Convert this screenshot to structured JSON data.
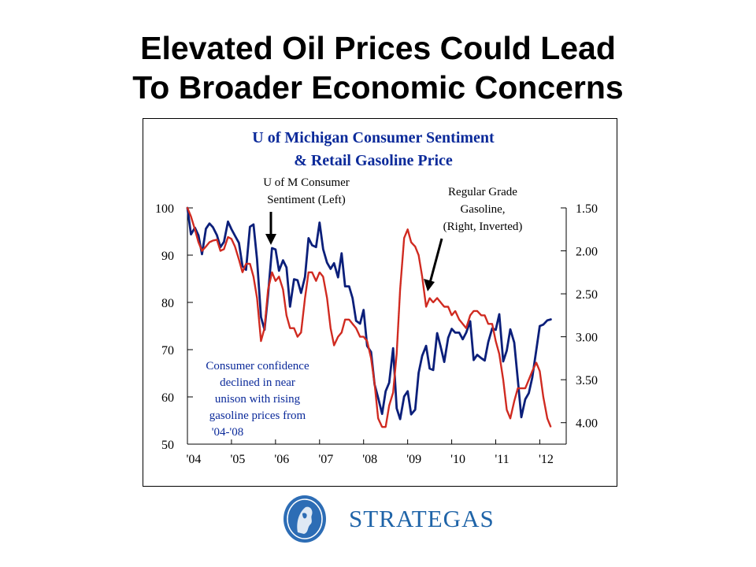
{
  "slide": {
    "title_line1": "Elevated Oil Prices Could Lead",
    "title_line2": "To Broader Economic Concerns"
  },
  "chart_data": {
    "type": "line",
    "title": "U of Michigan Consumer Sentiment & Retail Gasoline Price",
    "title_line1": "U of Michigan Consumer Sentiment",
    "title_line2": "& Retail Gasoline Price",
    "x_tick_labels": [
      "'04",
      "'05",
      "'06",
      "'07",
      "'08",
      "'09",
      "'10",
      "'11",
      "'12"
    ],
    "x_range": [
      2004.0,
      2012.6
    ],
    "y_left": {
      "range": [
        50,
        100
      ],
      "ticks": [
        100,
        90,
        80,
        70,
        60,
        50
      ]
    },
    "y_right": {
      "range": [
        1.5,
        4.25
      ],
      "inverted": true,
      "ticks": [
        "1.50",
        "2.00",
        "2.50",
        "3.00",
        "3.50",
        "4.00"
      ]
    },
    "grid": false,
    "annotations": {
      "sentiment_label_line1": "U of M Consumer",
      "sentiment_label_line2": "Sentiment (Left)",
      "gas_label_line1": "Regular Grade",
      "gas_label_line2": "Gasoline,",
      "gas_label_line3": "(Right, Inverted)",
      "note_lines": [
        "Consumer confidence",
        "declined in near",
        "unison with rising",
        "gasoline prices from",
        "'04-'08"
      ]
    },
    "series": [
      {
        "name": "U of M Consumer Sentiment (Left)",
        "axis": "left",
        "color": "#0b1f7a",
        "x": [
          2004.0,
          2004.08,
          2004.17,
          2004.25,
          2004.33,
          2004.42,
          2004.5,
          2004.58,
          2004.67,
          2004.75,
          2004.83,
          2004.92,
          2005.0,
          2005.08,
          2005.17,
          2005.25,
          2005.33,
          2005.42,
          2005.5,
          2005.58,
          2005.67,
          2005.75,
          2005.83,
          2005.92,
          2006.0,
          2006.08,
          2006.17,
          2006.25,
          2006.33,
          2006.42,
          2006.5,
          2006.58,
          2006.67,
          2006.75,
          2006.83,
          2006.92,
          2007.0,
          2007.08,
          2007.17,
          2007.25,
          2007.33,
          2007.42,
          2007.5,
          2007.58,
          2007.67,
          2007.75,
          2007.83,
          2007.92,
          2008.0,
          2008.08,
          2008.17,
          2008.25,
          2008.33,
          2008.42,
          2008.5,
          2008.58,
          2008.67,
          2008.75,
          2008.83,
          2008.92,
          2009.0,
          2009.08,
          2009.17,
          2009.25,
          2009.33,
          2009.42,
          2009.5,
          2009.58,
          2009.67,
          2009.75,
          2009.83,
          2009.92,
          2010.0,
          2010.08,
          2010.17,
          2010.25,
          2010.33,
          2010.42,
          2010.5,
          2010.58,
          2010.67,
          2010.75,
          2010.83,
          2010.92,
          2011.0,
          2011.08,
          2011.17,
          2011.25,
          2011.33,
          2011.42,
          2011.5,
          2011.58,
          2011.67,
          2011.75,
          2011.83,
          2011.92,
          2012.0,
          2012.08,
          2012.17,
          2012.25
        ],
        "values": [
          100.0,
          94.4,
          95.8,
          94.2,
          90.2,
          95.6,
          96.7,
          95.9,
          94.2,
          91.7,
          92.8,
          97.1,
          95.5,
          94.1,
          92.6,
          87.7,
          86.9,
          96.0,
          96.5,
          89.1,
          76.9,
          74.2,
          81.6,
          91.5,
          91.2,
          86.7,
          88.9,
          87.4,
          79.1,
          84.9,
          84.7,
          82.0,
          85.4,
          93.6,
          92.1,
          91.7,
          96.9,
          91.3,
          88.4,
          87.1,
          88.3,
          85.3,
          90.4,
          83.4,
          83.4,
          80.9,
          76.1,
          75.5,
          78.4,
          70.8,
          69.5,
          62.6,
          59.8,
          56.4,
          61.2,
          63.0,
          70.3,
          57.6,
          55.3,
          60.1,
          61.2,
          56.3,
          57.3,
          65.1,
          68.7,
          70.8,
          66.0,
          65.7,
          73.5,
          70.6,
          67.4,
          72.5,
          74.4,
          73.6,
          73.6,
          72.2,
          73.6,
          76.0,
          67.8,
          68.9,
          68.2,
          67.7,
          71.6,
          74.5,
          74.2,
          77.5,
          67.5,
          69.8,
          74.3,
          71.5,
          63.7,
          55.7,
          59.5,
          60.8,
          64.1,
          69.9,
          75.0,
          75.3,
          76.2,
          76.4
        ]
      },
      {
        "name": "Regular Grade Gasoline, (Right, Inverted)",
        "axis": "right",
        "color": "#d02a20",
        "x": [
          2004.0,
          2004.08,
          2004.17,
          2004.25,
          2004.33,
          2004.42,
          2004.5,
          2004.58,
          2004.67,
          2004.75,
          2004.83,
          2004.92,
          2005.0,
          2005.08,
          2005.17,
          2005.25,
          2005.33,
          2005.42,
          2005.5,
          2005.58,
          2005.67,
          2005.75,
          2005.83,
          2005.92,
          2006.0,
          2006.08,
          2006.17,
          2006.25,
          2006.33,
          2006.42,
          2006.5,
          2006.58,
          2006.67,
          2006.75,
          2006.83,
          2006.92,
          2007.0,
          2007.08,
          2007.17,
          2007.25,
          2007.33,
          2007.42,
          2007.5,
          2007.58,
          2007.67,
          2007.75,
          2007.83,
          2007.92,
          2008.0,
          2008.08,
          2008.17,
          2008.25,
          2008.33,
          2008.42,
          2008.5,
          2008.58,
          2008.67,
          2008.75,
          2008.83,
          2008.92,
          2009.0,
          2009.08,
          2009.17,
          2009.25,
          2009.33,
          2009.42,
          2009.5,
          2009.58,
          2009.67,
          2009.75,
          2009.83,
          2009.92,
          2010.0,
          2010.08,
          2010.17,
          2010.25,
          2010.33,
          2010.42,
          2010.5,
          2010.58,
          2010.67,
          2010.75,
          2010.83,
          2010.92,
          2011.0,
          2011.08,
          2011.17,
          2011.25,
          2011.33,
          2011.42,
          2011.5,
          2011.58,
          2011.67,
          2011.75,
          2011.83,
          2011.92,
          2012.0,
          2012.08,
          2012.17,
          2012.25
        ],
        "values": [
          1.5,
          1.6,
          1.75,
          1.9,
          2.0,
          1.95,
          1.9,
          1.88,
          1.87,
          2.0,
          1.98,
          1.84,
          1.86,
          1.95,
          2.1,
          2.25,
          2.15,
          2.15,
          2.3,
          2.55,
          3.05,
          2.9,
          2.45,
          2.25,
          2.35,
          2.3,
          2.45,
          2.75,
          2.9,
          2.9,
          3.0,
          2.95,
          2.55,
          2.25,
          2.25,
          2.35,
          2.25,
          2.3,
          2.55,
          2.9,
          3.1,
          3.0,
          2.95,
          2.8,
          2.8,
          2.85,
          2.9,
          3.0,
          3.0,
          3.05,
          3.25,
          3.55,
          3.95,
          4.05,
          4.05,
          3.8,
          3.65,
          3.2,
          2.45,
          1.85,
          1.75,
          1.9,
          1.95,
          2.05,
          2.3,
          2.65,
          2.55,
          2.6,
          2.55,
          2.6,
          2.65,
          2.65,
          2.75,
          2.7,
          2.8,
          2.85,
          2.9,
          2.75,
          2.7,
          2.7,
          2.75,
          2.75,
          2.85,
          2.85,
          3.05,
          3.2,
          3.5,
          3.85,
          3.95,
          3.75,
          3.6,
          3.6,
          3.6,
          3.5,
          3.4,
          3.3,
          3.4,
          3.7,
          3.95,
          4.05
        ]
      }
    ]
  },
  "logo": {
    "text": "STRATEGAS"
  }
}
